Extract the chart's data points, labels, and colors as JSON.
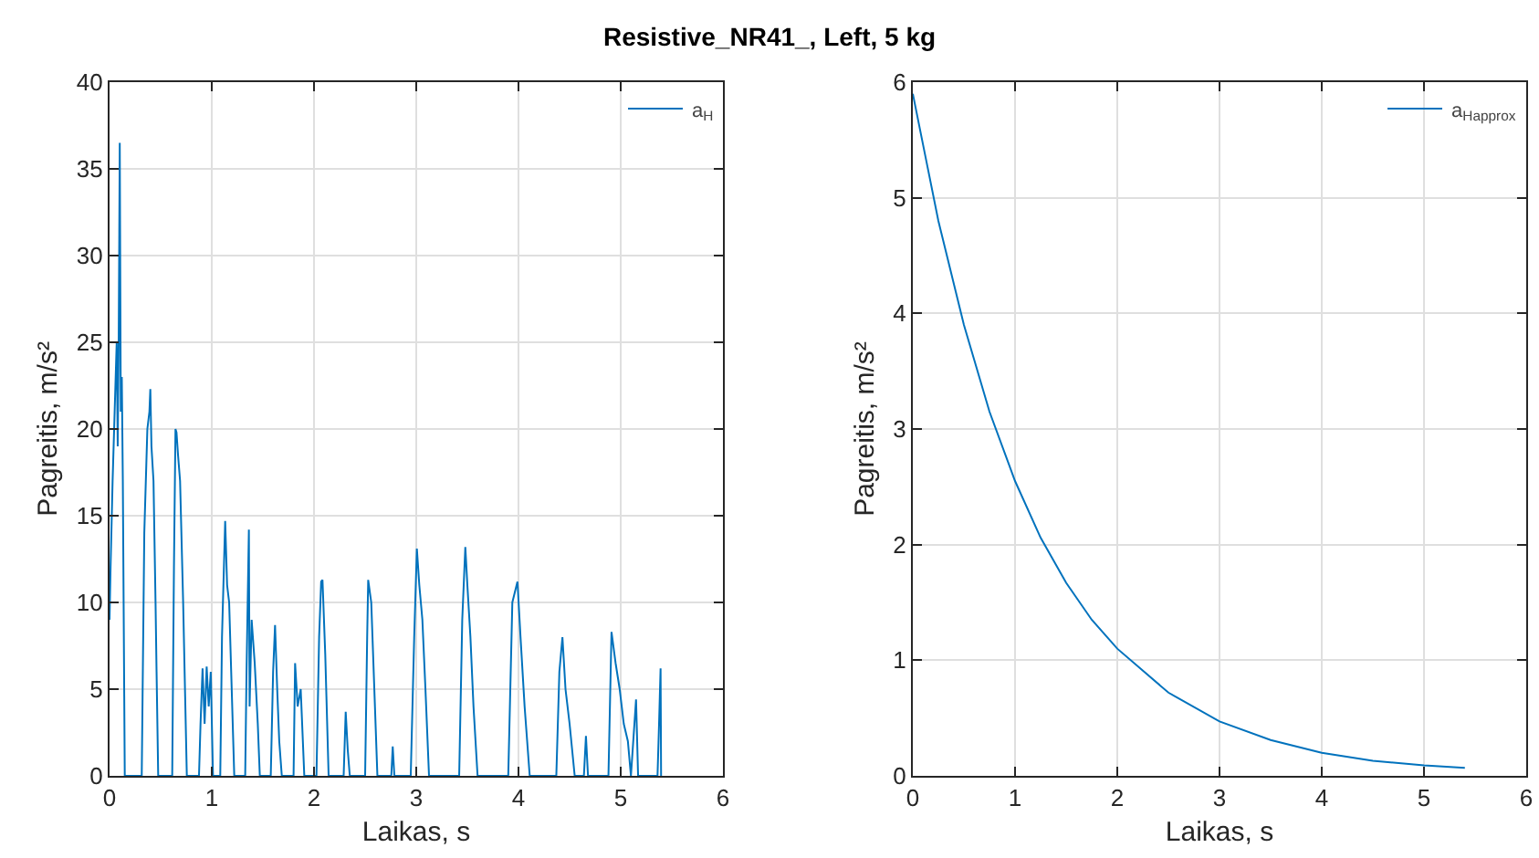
{
  "chart_data": [
    {
      "type": "line",
      "title": "Resistive_NR41_, Left,  5 kg",
      "xlabel": "Laikas, s",
      "ylabel": "Pagreitis, m/s²",
      "xlim": [
        0,
        6
      ],
      "xticks": [
        0,
        1,
        2,
        3,
        4,
        5,
        6
      ],
      "ylim": [
        0,
        40
      ],
      "yticks": [
        0,
        5,
        10,
        15,
        20,
        25,
        30,
        35,
        40
      ],
      "grid": true,
      "legend": "top right",
      "series": [
        {
          "name": "a$_{H}$",
          "color": "#0072bd",
          "x": [
            0,
            0.01,
            0.03,
            0.05,
            0.07,
            0.08,
            0.09,
            0.1,
            0.11,
            0.12,
            0.13,
            0.149,
            0.315,
            0.34,
            0.37,
            0.39,
            0.399,
            0.41,
            0.43,
            0.45,
            0.46,
            0.476,
            0.613,
            0.63,
            0.645,
            0.655,
            0.67,
            0.69,
            0.72,
            0.756,
            0.875,
            0.89,
            0.91,
            0.93,
            0.95,
            0.97,
            0.99,
            1.012,
            1.083,
            1.1,
            1.131,
            1.15,
            1.17,
            1.19,
            1.22,
            1.327,
            1.34,
            1.363,
            1.37,
            1.39,
            1.42,
            1.45,
            1.47,
            1.577,
            1.6,
            1.619,
            1.64,
            1.66,
            1.685,
            1.8,
            1.815,
            1.84,
            1.87,
            1.905,
            2.024,
            2.05,
            2.07,
            2.083,
            2.11,
            2.143,
            2.29,
            2.31,
            2.33,
            2.35,
            2.5,
            2.52,
            2.53,
            2.56,
            2.59,
            2.62,
            2.756,
            2.77,
            2.786,
            2.946,
            2.98,
            3.006,
            3.03,
            3.06,
            3.09,
            3.125,
            3.42,
            3.45,
            3.48,
            3.5,
            3.53,
            3.56,
            3.6,
            3.9,
            3.94,
            3.99,
            4.02,
            4.06,
            4.11,
            4.37,
            4.4,
            4.43,
            4.46,
            4.5,
            4.55,
            4.64,
            4.66,
            4.68,
            4.88,
            4.91,
            4.95,
            4.99,
            5.03,
            5.07,
            5.1,
            5.15,
            5.17,
            5.21,
            5.36,
            5.375,
            5.39,
            5.395
          ],
          "values": [
            9,
            12,
            17,
            21,
            25,
            19,
            25.5,
            36.5,
            21,
            23,
            17,
            0,
            0,
            14,
            20,
            21,
            22.3,
            19,
            17,
            10,
            6,
            0,
            0,
            12,
            20,
            19.8,
            18.5,
            17,
            10,
            0,
            0,
            3,
            6.2,
            3,
            6.3,
            4,
            6,
            0,
            0,
            8,
            14.7,
            11,
            10,
            6,
            0,
            0,
            6,
            14.2,
            4,
            9,
            6.5,
            3,
            0,
            0,
            6,
            8.7,
            5,
            2,
            0,
            0,
            6.5,
            4,
            5,
            0,
            0,
            8,
            11.2,
            11.3,
            7,
            0,
            0,
            3.7,
            1.5,
            0,
            0,
            8,
            11.3,
            10,
            5,
            0,
            0,
            1.7,
            0,
            0,
            8,
            13.1,
            11,
            9,
            5,
            0,
            0,
            9,
            13.2,
            11,
            8,
            4,
            0,
            0,
            10,
            11.2,
            8,
            4,
            0,
            0,
            6,
            8,
            5,
            3,
            0,
            0,
            2.3,
            0,
            0,
            8.3,
            6.5,
            5,
            3,
            2,
            0,
            4.4,
            0,
            0,
            0,
            3,
            6.2,
            0
          ]
        }
      ]
    },
    {
      "type": "line",
      "xlabel": "Laikas, s",
      "ylabel": "Pagreitis, m/s²",
      "xlim": [
        0,
        6
      ],
      "xticks": [
        0,
        1,
        2,
        3,
        4,
        5,
        6
      ],
      "ylim": [
        0,
        6
      ],
      "yticks": [
        0,
        1,
        2,
        3,
        4,
        5,
        6
      ],
      "grid": true,
      "legend": "top right",
      "series": [
        {
          "name": "a$_{H}$$_{approx}$",
          "color": "#0072bd",
          "x": [
            0,
            0.25,
            0.5,
            0.75,
            1,
            1.25,
            1.5,
            1.75,
            2,
            2.5,
            3,
            3.5,
            4,
            4.5,
            5,
            5.4
          ],
          "values": [
            5.9,
            4.8,
            3.9,
            3.15,
            2.55,
            2.06,
            1.67,
            1.35,
            1.1,
            0.72,
            0.47,
            0.31,
            0.2,
            0.13,
            0.09,
            0.07
          ]
        }
      ]
    }
  ]
}
